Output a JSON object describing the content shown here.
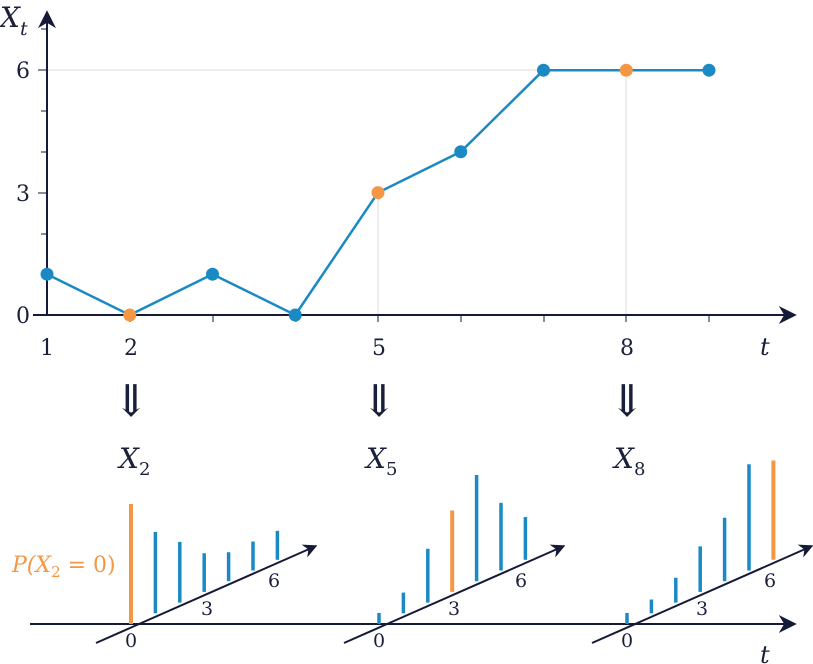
{
  "colors": {
    "line": "#1b8ac4",
    "highlight": "#f49745",
    "axis": "#141a38",
    "grid": "#dcdcdc"
  },
  "top_plot": {
    "y_axis_label": "X",
    "y_axis_subscript": "t",
    "x_axis_label": "t",
    "y_ticks": [
      "0",
      "3",
      "6"
    ],
    "x_tick_labels": [
      "1",
      "2",
      "5",
      "8"
    ],
    "path": [
      {
        "t": 1,
        "x": 1,
        "highlight": false
      },
      {
        "t": 2,
        "x": 0,
        "highlight": true
      },
      {
        "t": 3,
        "x": 1,
        "highlight": false
      },
      {
        "t": 4,
        "x": 0,
        "highlight": false
      },
      {
        "t": 5,
        "x": 3,
        "highlight": true
      },
      {
        "t": 6,
        "x": 4,
        "highlight": false
      },
      {
        "t": 7,
        "x": 6,
        "highlight": false
      },
      {
        "t": 8,
        "x": 6,
        "highlight": true
      },
      {
        "t": 9,
        "x": 6,
        "highlight": false
      }
    ]
  },
  "arrows": {
    "symbol": "⇓"
  },
  "marginals": [
    {
      "label": "X",
      "subscript": "2",
      "axis_labels": {
        "origin": "0",
        "mid": "3",
        "far": "6"
      },
      "bars": [
        0.87,
        0.59,
        0.44,
        0.28,
        0.21,
        0.21,
        0.21
      ],
      "highlight_index": 0,
      "annotation": {
        "prefix": "P(X",
        "subscript": "2",
        "suffix": " = 0)"
      }
    },
    {
      "label": "X",
      "subscript": "5",
      "axis_labels": {
        "origin": "0",
        "mid": "3",
        "far": "6"
      },
      "bars": [
        0.08,
        0.15,
        0.39,
        0.59,
        0.77,
        0.49,
        0.31
      ],
      "highlight_index": 3,
      "annotation": null
    },
    {
      "label": "X",
      "subscript": "8",
      "axis_labels": {
        "origin": "0",
        "mid": "3",
        "far": "6"
      },
      "bars": [
        0.08,
        0.1,
        0.18,
        0.33,
        0.46,
        0.77,
        0.72
      ],
      "highlight_index": 6,
      "annotation": null
    }
  ],
  "bottom_axis_label": "t"
}
